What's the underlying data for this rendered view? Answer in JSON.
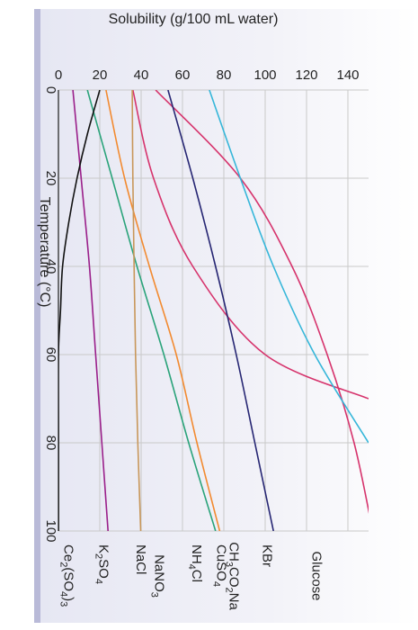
{
  "chart_data": {
    "type": "line",
    "title": "",
    "xlabel": "Temperature (°C)",
    "ylabel": "Solubility (g/100 mL water)",
    "xlim": [
      0,
      100
    ],
    "ylim": [
      0,
      150
    ],
    "xticks": [
      0,
      20,
      40,
      60,
      80,
      100
    ],
    "yticks": [
      0,
      20,
      40,
      60,
      80,
      100,
      120,
      140
    ],
    "grid": true,
    "series": [
      {
        "name": "Glucose",
        "label_parts": [
          [
            "Glucose",
            ""
          ]
        ],
        "label_side": "end",
        "label_pos": 125,
        "color": "#d6336c",
        "x": [
          0,
          20,
          40,
          60,
          80,
          100
        ],
        "y": [
          47,
          88,
          113,
          130,
          143,
          152
        ]
      },
      {
        "name": "CH3CO2Na",
        "label_parts": [
          [
            "CH",
            ""
          ],
          [
            "3",
            "sub"
          ],
          [
            "CO",
            ""
          ],
          [
            "2",
            "sub"
          ],
          [
            "Na",
            ""
          ]
        ],
        "label_side": "end",
        "label_pos": 85,
        "color": "#d6336c",
        "x": [
          0,
          20,
          40,
          60,
          70
        ],
        "y": [
          36,
          46,
          65,
          100,
          150
        ]
      },
      {
        "name": "NaNO3",
        "label_parts": [
          [
            "NaNO",
            ""
          ],
          [
            "3",
            "sub"
          ]
        ],
        "label_side": "end",
        "label_pos": 49,
        "color": "#35b6d9",
        "x": [
          0,
          20,
          40,
          60,
          80
        ],
        "y": [
          73,
          88,
          104,
          124,
          150
        ]
      },
      {
        "name": "KBr",
        "label_parts": [
          [
            "KBr",
            ""
          ]
        ],
        "label_side": "start",
        "label_pos": 101,
        "color": "#262673",
        "x": [
          0,
          20,
          40,
          60,
          80,
          100
        ],
        "y": [
          53,
          65,
          76,
          86,
          95,
          104
        ]
      },
      {
        "name": "CuSO4",
        "label_parts": [
          [
            "CuSO",
            ""
          ],
          [
            "4",
            "sub"
          ]
        ],
        "label_side": "start",
        "label_pos": 79,
        "color": "#f28a30",
        "x": [
          0,
          20,
          40,
          60,
          80,
          100
        ],
        "y": [
          23,
          32,
          44,
          57,
          67,
          78
        ]
      },
      {
        "name": "NH4Cl",
        "label_parts": [
          [
            "NH",
            ""
          ],
          [
            "4",
            "sub"
          ],
          [
            "Cl",
            ""
          ]
        ],
        "label_side": "start",
        "label_pos": 67,
        "color": "#2aa37a",
        "x": [
          0,
          20,
          40,
          60,
          80,
          100
        ],
        "y": [
          14,
          26,
          38,
          51,
          63,
          76
        ]
      },
      {
        "name": "NaCl",
        "label_parts": [
          [
            "NaCl",
            ""
          ]
        ],
        "label_side": "start",
        "label_pos": 40,
        "color": "#c8975a",
        "x": [
          0,
          20,
          40,
          60,
          80,
          100
        ],
        "y": [
          35.7,
          36,
          36.6,
          37.3,
          38.4,
          39.8
        ]
      },
      {
        "name": "K2SO4",
        "label_parts": [
          [
            "K",
            ""
          ],
          [
            "2",
            "sub"
          ],
          [
            "SO",
            ""
          ],
          [
            "4",
            "sub"
          ]
        ],
        "label_side": "start",
        "label_pos": 22,
        "color": "#9a1f8a",
        "x": [
          0,
          20,
          40,
          60,
          80,
          100
        ],
        "y": [
          7,
          11,
          15,
          18,
          21,
          24
        ]
      },
      {
        "name": "Ce2(SO4)3",
        "label_parts": [
          [
            "Ce",
            ""
          ],
          [
            "2",
            "sub"
          ],
          [
            "(SO",
            ""
          ],
          [
            "4",
            "sub"
          ],
          [
            ")",
            ""
          ],
          [
            "3",
            "sub"
          ]
        ],
        "label_side": "start",
        "label_pos": 5,
        "color": "#111111",
        "x": [
          0,
          10,
          20,
          30,
          40,
          50,
          60,
          80,
          100
        ],
        "y": [
          20,
          14,
          9,
          5,
          2,
          1,
          0,
          0,
          0
        ]
      }
    ]
  }
}
